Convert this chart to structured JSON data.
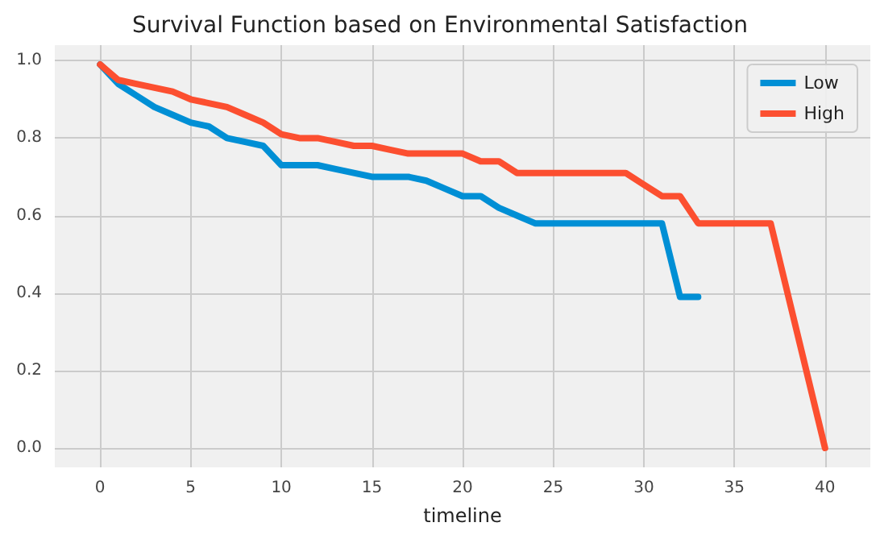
{
  "chart_data": {
    "type": "line",
    "title": "Survival Function based on Environmental Satisfaction",
    "xlabel": "timeline",
    "xlim": [
      -2.5,
      42.5
    ],
    "xticks": [
      0,
      5,
      10,
      15,
      20,
      25,
      30,
      35,
      40
    ],
    "ylim": [
      -0.05,
      1.04
    ],
    "yticks": [
      {
        "value": 0,
        "label": "0.0"
      },
      {
        "value": 0.2,
        "label": "0.2"
      },
      {
        "value": 0.4,
        "label": "0.4"
      },
      {
        "value": 0.6,
        "label": "0.6"
      },
      {
        "value": 0.8,
        "label": "0.8"
      },
      {
        "value": 1,
        "label": "1.0"
      }
    ],
    "grid": true,
    "legend": "top right",
    "marker": "none",
    "line_style": "solid",
    "series": [
      {
        "name": "Low",
        "color": "#008fd5",
        "x": [
          0,
          1,
          2,
          3,
          4,
          5,
          6,
          7,
          8,
          9,
          10,
          11,
          12,
          13,
          14,
          15,
          16,
          17,
          18,
          19,
          20,
          21,
          22,
          23,
          24,
          25,
          26,
          27,
          28,
          29,
          30,
          31,
          32,
          33
        ],
        "values": [
          0.99,
          0.94,
          0.91,
          0.88,
          0.86,
          0.84,
          0.83,
          0.8,
          0.79,
          0.78,
          0.73,
          0.73,
          0.73,
          0.72,
          0.71,
          0.7,
          0.7,
          0.7,
          0.69,
          0.67,
          0.65,
          0.65,
          0.62,
          0.6,
          0.58,
          0.58,
          0.58,
          0.58,
          0.58,
          0.58,
          0.58,
          0.58,
          0.39,
          0.39
        ]
      },
      {
        "name": "High",
        "color": "#fc4f30",
        "x": [
          0,
          1,
          2,
          3,
          4,
          5,
          6,
          7,
          8,
          9,
          10,
          11,
          12,
          13,
          14,
          15,
          16,
          17,
          18,
          19,
          20,
          21,
          22,
          23,
          24,
          25,
          26,
          27,
          28,
          29,
          30,
          31,
          32,
          33,
          34,
          35,
          36,
          37,
          40
        ],
        "values": [
          0.99,
          0.95,
          0.94,
          0.93,
          0.92,
          0.9,
          0.89,
          0.88,
          0.86,
          0.84,
          0.81,
          0.8,
          0.8,
          0.79,
          0.78,
          0.78,
          0.77,
          0.76,
          0.76,
          0.76,
          0.76,
          0.74,
          0.74,
          0.71,
          0.71,
          0.71,
          0.71,
          0.71,
          0.71,
          0.71,
          0.68,
          0.65,
          0.65,
          0.58,
          0.58,
          0.58,
          0.58,
          0.58,
          0.0
        ]
      }
    ]
  }
}
